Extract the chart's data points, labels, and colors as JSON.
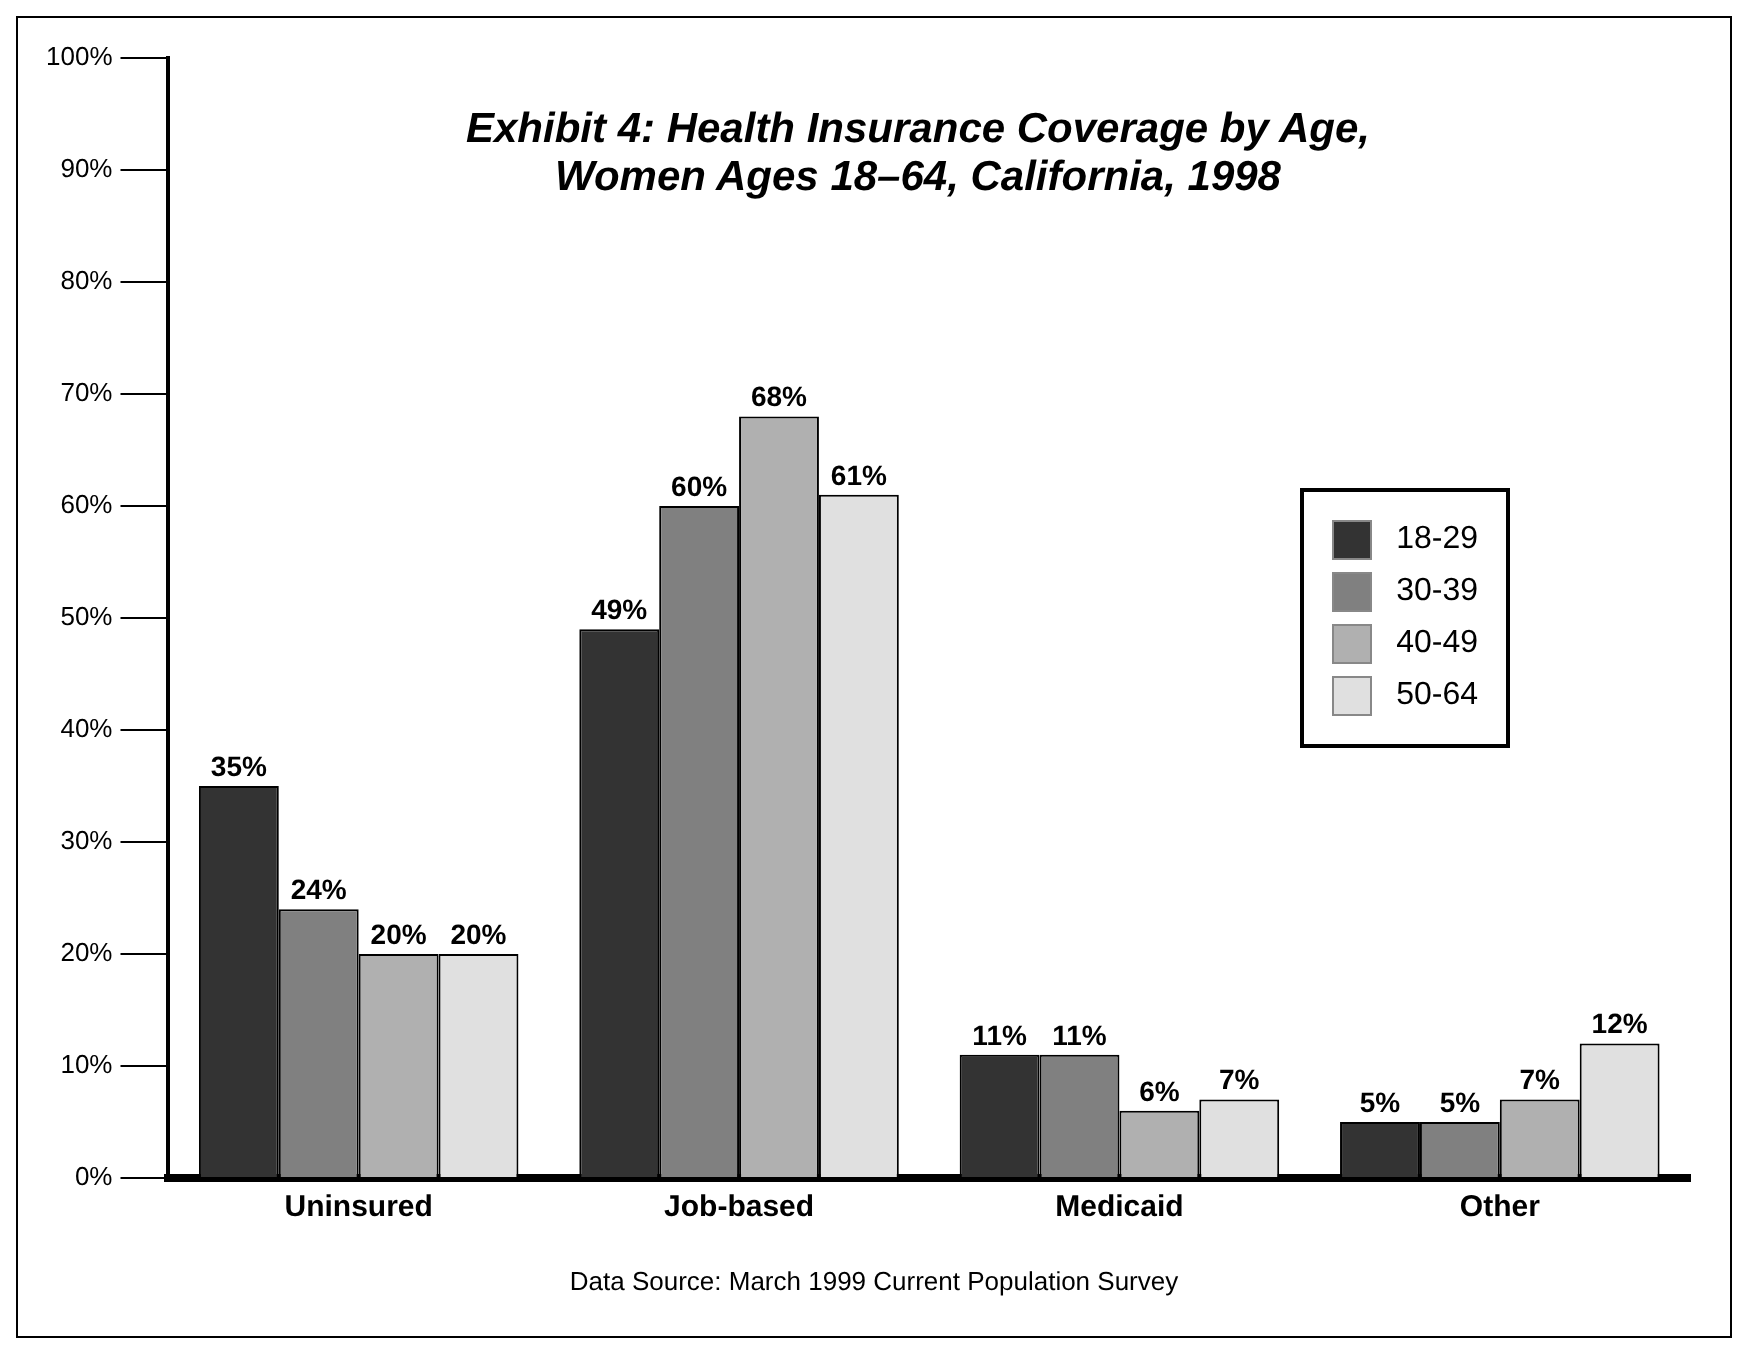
{
  "chart_data": {
    "type": "bar",
    "title": "Exhibit 4: Health Insurance Coverage by Age, Women Ages 18–64, California, 1998",
    "categories": [
      "Uninsured",
      "Job-based",
      "Medicaid",
      "Other"
    ],
    "series": [
      {
        "name": "18-29",
        "color": "#333333",
        "values": [
          35,
          49,
          11,
          5
        ],
        "value_labels": [
          "35%",
          "49%",
          "11%",
          "5%"
        ]
      },
      {
        "name": "30-39",
        "color": "#808080",
        "values": [
          24,
          60,
          11,
          5
        ],
        "value_labels": [
          "24%",
          "60%",
          "11%",
          "5%"
        ]
      },
      {
        "name": "40-49",
        "color": "#b0b0b0",
        "values": [
          20,
          68,
          6,
          7
        ],
        "value_labels": [
          "20%",
          "68%",
          "6%",
          "7%"
        ]
      },
      {
        "name": "50-64",
        "color": "#e0e0e0",
        "values": [
          20,
          61,
          7,
          12
        ],
        "value_labels": [
          "20%",
          "61%",
          "7%",
          "12%"
        ]
      }
    ],
    "ylim": [
      0,
      100
    ],
    "yticks": [
      {
        "value": 0,
        "label": "0%"
      },
      {
        "value": 10,
        "label": "10%"
      },
      {
        "value": 20,
        "label": "20%"
      },
      {
        "value": 30,
        "label": "30%"
      },
      {
        "value": 40,
        "label": "40%"
      },
      {
        "value": 50,
        "label": "50%"
      },
      {
        "value": 60,
        "label": "60%"
      },
      {
        "value": 70,
        "label": "70%"
      },
      {
        "value": 80,
        "label": "80%"
      },
      {
        "value": 90,
        "label": "90%"
      },
      {
        "value": 100,
        "label": "100%"
      }
    ],
    "grid": false,
    "legend": "right",
    "annotations": [
      "Data Source: March 1999 Current Population Survey"
    ]
  }
}
